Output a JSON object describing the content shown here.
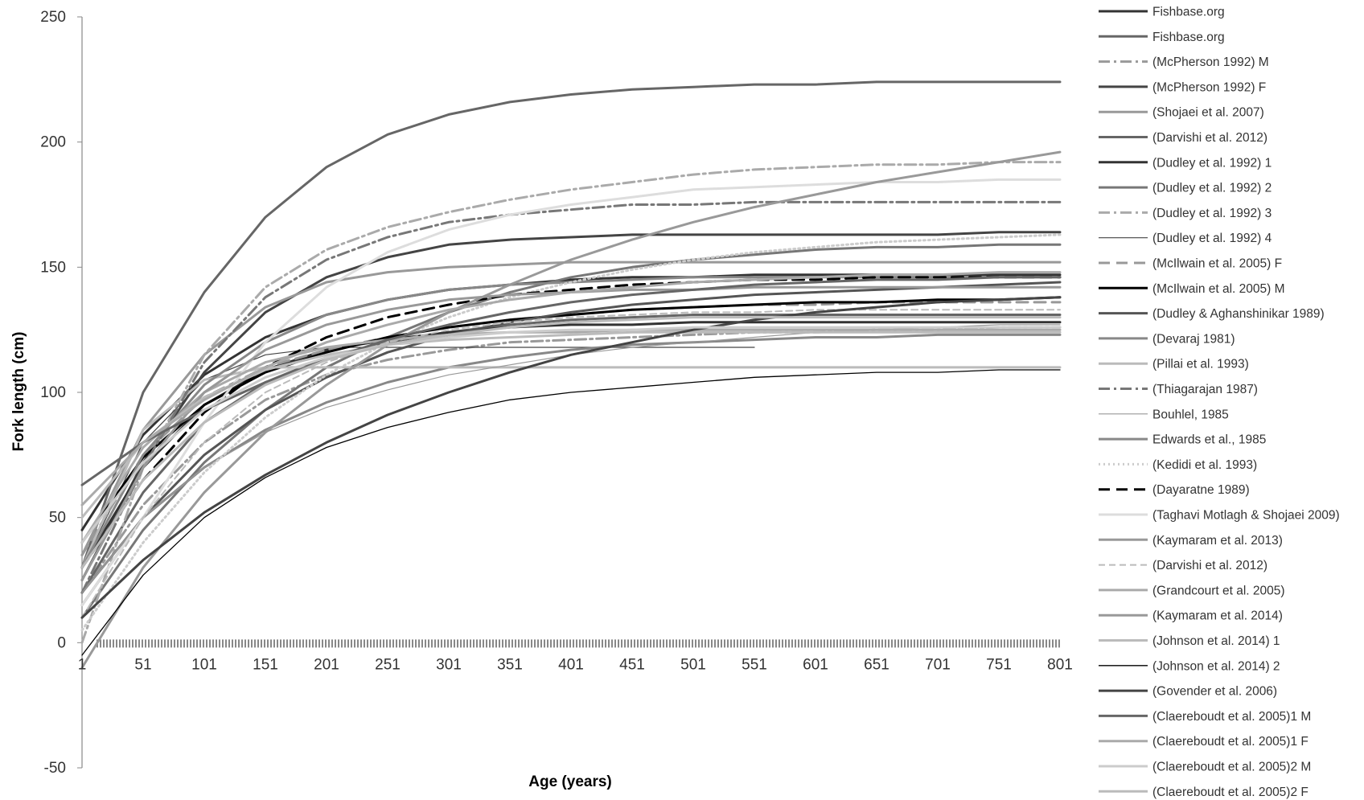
{
  "chart_data": {
    "type": "line",
    "title": "",
    "xlabel": "Age (years)",
    "ylabel": "Fork length (cm)",
    "xlim": [
      1,
      801
    ],
    "ylim": [
      -50,
      250
    ],
    "x_ticks": [
      "1",
      "51",
      "101",
      "151",
      "201",
      "251",
      "301",
      "351",
      "401",
      "451",
      "501",
      "551",
      "601",
      "651",
      "701",
      "751",
      "801"
    ],
    "y_ticks": [
      "-50",
      "0",
      "50",
      "100",
      "150",
      "200",
      "250"
    ],
    "legend_position": "right",
    "grid": false,
    "x": [
      1,
      51,
      101,
      151,
      201,
      251,
      301,
      351,
      401,
      451,
      501,
      551,
      601,
      651,
      701,
      751,
      801
    ],
    "zero_series_style": "dense-ticks",
    "series": [
      {
        "name": "Fishbase.org",
        "color": "#333333",
        "dash": "",
        "width": 3,
        "values": [
          45,
          83,
          107,
          122,
          131,
          137,
          141,
          143,
          145,
          146,
          146,
          147,
          147,
          147,
          147,
          147,
          147
        ]
      },
      {
        "name": "Fishbase.org",
        "color": "#666666",
        "dash": "",
        "width": 3,
        "values": [
          30,
          100,
          140,
          170,
          190,
          203,
          211,
          216,
          219,
          221,
          222,
          223,
          223,
          224,
          224,
          224,
          224
        ]
      },
      {
        "name": "(McPherson 1992) M",
        "color": "#999999",
        "dash": "14,5,3,5",
        "width": 3,
        "values": [
          20,
          55,
          80,
          97,
          107,
          113,
          117,
          120,
          121,
          122,
          123,
          124,
          124,
          125,
          125,
          126,
          126
        ]
      },
      {
        "name": "(McPherson 1992) F",
        "color": "#444444",
        "dash": "",
        "width": 3,
        "values": [
          25,
          72,
          108,
          132,
          146,
          154,
          159,
          161,
          162,
          163,
          163,
          163,
          163,
          163,
          163,
          164,
          164
        ]
      },
      {
        "name": "(Shojaei et al. 2007)",
        "color": "#999999",
        "dash": "",
        "width": 3,
        "values": [
          35,
          85,
          115,
          134,
          144,
          148,
          150,
          151,
          152,
          152,
          152,
          152,
          152,
          152,
          152,
          152,
          152
        ]
      },
      {
        "name": "(Darvishi et al. 2012)",
        "color": "#666666",
        "dash": "",
        "width": 3,
        "values": [
          20,
          60,
          88,
          104,
          114,
          120,
          124,
          127,
          129,
          130,
          131,
          131,
          131,
          131,
          131,
          131,
          131
        ]
      },
      {
        "name": "(Dudley et al. 1992) 1",
        "color": "#333333",
        "dash": "",
        "width": 3,
        "values": [
          30,
          70,
          95,
          109,
          117,
          121,
          124,
          126,
          127,
          127,
          128,
          128,
          128,
          128,
          128,
          128,
          128
        ]
      },
      {
        "name": "(Dudley et al. 1992) 2",
        "color": "#777777",
        "dash": "",
        "width": 3,
        "values": [
          10,
          45,
          72,
          93,
          110,
          122,
          132,
          140,
          146,
          150,
          153,
          155,
          157,
          158,
          158,
          159,
          159
        ]
      },
      {
        "name": "(Dudley et al. 1992) 3",
        "color": "#aaaaaa",
        "dash": "14,5,3,5",
        "width": 3,
        "values": [
          0,
          70,
          115,
          142,
          157,
          166,
          172,
          177,
          181,
          184,
          187,
          189,
          190,
          191,
          191,
          192,
          192
        ]
      },
      {
        "name": "(Dudley et al. 1992) 4",
        "color": "#444444",
        "dash": "",
        "width": 1.2,
        "values": [
          30,
          80,
          105,
          115,
          118,
          118,
          118,
          118,
          118,
          118,
          118,
          118,
          null,
          null,
          null,
          null,
          null
        ]
      },
      {
        "name": "(McIlwain et al. 2005) F",
        "color": "#999999",
        "dash": "14,8",
        "width": 3,
        "values": [
          35,
          75,
          98,
          110,
          117,
          122,
          126,
          129,
          131,
          133,
          134,
          135,
          135,
          136,
          136,
          136,
          136
        ]
      },
      {
        "name": "(McIlwain et al. 2005) M",
        "color": "#000000",
        "dash": "",
        "width": 3,
        "values": [
          40,
          74,
          95,
          108,
          116,
          122,
          126,
          129,
          131,
          133,
          134,
          135,
          136,
          136,
          137,
          137,
          138
        ]
      },
      {
        "name": "(Dudley & Aghanshinikar 1989)",
        "color": "#555555",
        "dash": "",
        "width": 3,
        "values": [
          15,
          50,
          75,
          93,
          106,
          116,
          123,
          128,
          132,
          135,
          137,
          139,
          140,
          141,
          142,
          143,
          144
        ]
      },
      {
        "name": "(Devaraj 1981)",
        "color": "#888888",
        "dash": "",
        "width": 3,
        "values": [
          20,
          50,
          70,
          85,
          96,
          104,
          110,
          114,
          117,
          119,
          120,
          121,
          122,
          122,
          123,
          123,
          123
        ]
      },
      {
        "name": "(Pillai et al. 1993)",
        "color": "#bbbbbb",
        "dash": "",
        "width": 3,
        "values": [
          30,
          85,
          105,
          110,
          110,
          110,
          110,
          110,
          110,
          110,
          110,
          110,
          110,
          110,
          110,
          110,
          110
        ]
      },
      {
        "name": "(Thiagarajan 1987)",
        "color": "#777777",
        "dash": "14,5,3,5",
        "width": 3,
        "values": [
          20,
          70,
          112,
          138,
          153,
          162,
          168,
          171,
          173,
          175,
          175,
          176,
          176,
          176,
          176,
          176,
          176
        ]
      },
      {
        "name": "Bouhlel, 1985",
        "color": "#999999",
        "dash": "",
        "width": 1.2,
        "values": [
          20,
          50,
          70,
          84,
          94,
          101,
          107,
          111,
          115,
          118,
          120,
          122,
          124,
          125,
          126,
          127,
          127
        ]
      },
      {
        "name": "Edwards et al., 1985",
        "color": "#888888",
        "dash": "",
        "width": 3,
        "values": [
          30,
          75,
          103,
          120,
          131,
          137,
          141,
          143,
          144,
          145,
          146,
          146,
          146,
          146,
          146,
          146,
          146
        ]
      },
      {
        "name": "(Kedidi et al. 1993)",
        "color": "#cccccc",
        "dash": "2,4",
        "width": 3,
        "values": [
          5,
          40,
          68,
          90,
          107,
          120,
          130,
          138,
          144,
          149,
          153,
          156,
          158,
          160,
          161,
          162,
          163
        ]
      },
      {
        "name": "(Dayaratne 1989)",
        "color": "#000000",
        "dash": "14,8",
        "width": 3,
        "values": [
          30,
          65,
          92,
          110,
          122,
          130,
          135,
          139,
          141,
          143,
          144,
          145,
          145,
          146,
          146,
          146,
          146
        ]
      },
      {
        "name": "(Taghavi Motlagh & Shojaei 2009)",
        "color": "#dddddd",
        "dash": "",
        "width": 3,
        "values": [
          15,
          50,
          88,
          120,
          142,
          156,
          165,
          171,
          175,
          178,
          181,
          182,
          183,
          184,
          184,
          185,
          185
        ]
      },
      {
        "name": "(Kaymaram et al. 2013)",
        "color": "#999999",
        "dash": "",
        "width": 3,
        "values": [
          -10,
          30,
          60,
          84,
          103,
          119,
          132,
          143,
          153,
          161,
          168,
          174,
          179,
          184,
          188,
          192,
          196
        ]
      },
      {
        "name": "(Darvishi et al. 2012)",
        "color": "#bbbbbb",
        "dash": "8,5",
        "width": 2,
        "values": [
          10,
          50,
          80,
          100,
          112,
          120,
          125,
          128,
          130,
          131,
          132,
          132,
          133,
          133,
          133,
          133,
          133
        ]
      },
      {
        "name": "(Grandcourt et al. 2005)",
        "color": "#aaaaaa",
        "dash": "",
        "width": 3,
        "values": [
          40,
          78,
          100,
          112,
          118,
          121,
          123,
          124,
          124,
          125,
          125,
          125,
          125,
          125,
          125,
          125,
          125
        ]
      },
      {
        "name": "(Kaymaram et al. 2014)",
        "color": "#999999",
        "dash": "",
        "width": 3,
        "values": [
          25,
          70,
          100,
          117,
          127,
          133,
          137,
          139,
          140,
          141,
          141,
          142,
          142,
          142,
          142,
          142,
          142
        ]
      },
      {
        "name": "(Johnson et al. 2014) 1",
        "color": "#bbbbbb",
        "dash": "",
        "width": 3,
        "values": [
          50,
          80,
          98,
          109,
          115,
          119,
          121,
          122,
          123,
          124,
          124,
          124,
          124,
          124,
          124,
          124,
          124
        ]
      },
      {
        "name": "(Johnson et al. 2014) 2",
        "color": "#000000",
        "dash": "",
        "width": 1.3,
        "values": [
          -5,
          27,
          50,
          66,
          78,
          86,
          92,
          97,
          100,
          102,
          104,
          106,
          107,
          108,
          108,
          109,
          109
        ]
      },
      {
        "name": "(Govender et al. 2006)",
        "color": "#444444",
        "dash": "",
        "width": 3,
        "values": [
          10,
          33,
          52,
          67,
          80,
          91,
          100,
          108,
          115,
          120,
          125,
          129,
          132,
          134,
          136,
          137,
          138
        ]
      },
      {
        "name": "(Claereboudt et al. 2005)1 M",
        "color": "#666666",
        "dash": "",
        "width": 3,
        "values": [
          63,
          80,
          93,
          104,
          113,
          121,
          127,
          132,
          136,
          139,
          141,
          143,
          144,
          145,
          145,
          146,
          146
        ]
      },
      {
        "name": "(Claereboudt et al. 2005)1 F",
        "color": "#aaaaaa",
        "dash": "",
        "width": 3,
        "values": [
          55,
          80,
          97,
          110,
          120,
          127,
          133,
          137,
          140,
          142,
          144,
          145,
          146,
          147,
          147,
          148,
          148
        ]
      },
      {
        "name": "(Claereboudt et al. 2005)2 M",
        "color": "#cccccc",
        "dash": "",
        "width": 3,
        "values": [
          40,
          72,
          93,
          106,
          114,
          119,
          122,
          124,
          125,
          125,
          126,
          126,
          126,
          126,
          126,
          126,
          126
        ]
      },
      {
        "name": "(Claereboudt et al. 2005)2 F",
        "color": "#bbbbbb",
        "dash": "",
        "width": 3,
        "values": [
          30,
          65,
          88,
          103,
          113,
          119,
          123,
          126,
          128,
          129,
          130,
          130,
          130,
          130,
          130,
          130,
          130
        ]
      }
    ]
  }
}
